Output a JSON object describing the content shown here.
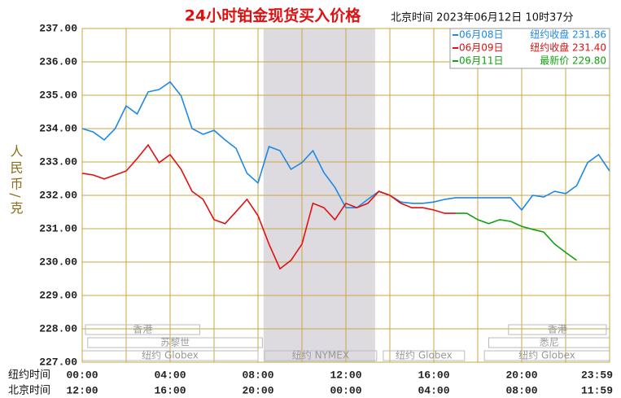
{
  "chart_data": {
    "type": "line",
    "title": "24小时铂金现货买入价格",
    "subtitle": "北京时间 2023年06月12日 10时37分",
    "ylabel": "人民币/克",
    "xlabel": "纽约时间",
    "x2label": "北京时间",
    "xlim": [
      0,
      24
    ],
    "ylim": [
      227,
      237
    ],
    "yticks": [
      {
        "value": 227,
        "label": "227.00"
      },
      {
        "value": 228,
        "label": "228.00"
      },
      {
        "value": 229,
        "label": "229.00"
      },
      {
        "value": 230,
        "label": "230.00"
      },
      {
        "value": 231,
        "label": "231.00"
      },
      {
        "value": 232,
        "label": "232.00"
      },
      {
        "value": 233,
        "label": "233.00"
      },
      {
        "value": 234,
        "label": "234.00"
      },
      {
        "value": 235,
        "label": "235.00"
      },
      {
        "value": 236,
        "label": "236.00"
      },
      {
        "value": 237,
        "label": "237.00"
      }
    ],
    "xticks": [
      {
        "value": 0,
        "label": "00:00"
      },
      {
        "value": 4,
        "label": "04:00"
      },
      {
        "value": 8,
        "label": "08:00"
      },
      {
        "value": 12,
        "label": "12:00"
      },
      {
        "value": 16,
        "label": "16:00"
      },
      {
        "value": 20,
        "label": "20:00"
      },
      {
        "value": 23.98,
        "label": "23:59"
      }
    ],
    "x2ticks": [
      {
        "value": 0,
        "label": "12:00"
      },
      {
        "value": 4,
        "label": "16:00"
      },
      {
        "value": 8,
        "label": "20:00"
      },
      {
        "value": 12,
        "label": "00:00"
      },
      {
        "value": 16,
        "label": "04:00"
      },
      {
        "value": 20,
        "label": "08:00"
      },
      {
        "value": 23.98,
        "label": "11:59"
      }
    ],
    "xgrid": [
      0,
      2,
      4,
      6,
      8,
      10,
      12,
      14,
      16,
      18,
      20,
      22,
      24
    ],
    "grid": true,
    "highlight_x": [
      8.25,
      13.33
    ],
    "sessions": [
      {
        "label": "香港",
        "start": 0.15,
        "end": 5.35
      },
      {
        "label": "苏黎世",
        "start": 0.25,
        "end": 8.2
      },
      {
        "label": "纽约 Globex",
        "start": 0,
        "end": 8
      },
      {
        "label": "纽约 NYMEX",
        "start": 8.3,
        "end": 13.4
      },
      {
        "label": "纽约 Globex",
        "start": 13.7,
        "end": 17.4
      },
      {
        "label": "香港",
        "start": 19.4,
        "end": 23.85
      },
      {
        "label": "悉尼",
        "start": 18.5,
        "end": 24
      },
      {
        "label": "纽约 Globex",
        "start": 18.3,
        "end": 24
      }
    ],
    "x": [
      0,
      0.5,
      1,
      1.5,
      2,
      2.5,
      3,
      3.5,
      4,
      4.5,
      5,
      5.5,
      6,
      6.5,
      7,
      7.5,
      8,
      8.5,
      9,
      9.5,
      10,
      10.5,
      11,
      11.5,
      12,
      12.5,
      13,
      13.5,
      14,
      14.5,
      15,
      15.5,
      16,
      16.5,
      17,
      17.5,
      18,
      18.5,
      19,
      19.5,
      20,
      20.5,
      21,
      21.5,
      22,
      22.5,
      23,
      23.5,
      24
    ],
    "series": [
      {
        "name": "06月08日",
        "legend_text": "纽约收盘 231.86",
        "color": "#1e88e5",
        "values": [
          234.0,
          233.9,
          233.66,
          234.0,
          234.68,
          234.44,
          235.1,
          235.17,
          235.4,
          234.98,
          234.0,
          233.83,
          233.95,
          233.66,
          233.41,
          232.66,
          232.37,
          233.46,
          233.34,
          232.78,
          232.98,
          233.34,
          232.68,
          232.24,
          231.63,
          231.63,
          231.88,
          232.12,
          232.0,
          231.8,
          231.76,
          231.76,
          231.8,
          231.88,
          231.93,
          231.93,
          231.93,
          231.93,
          231.93,
          231.93,
          231.56,
          232.0,
          231.95,
          232.12,
          232.05,
          232.29,
          232.98,
          233.22,
          232.73
        ]
      },
      {
        "name": "06月09日",
        "legend_text": "纽约收盘 231.40",
        "color": "#e01010",
        "values": [
          232.66,
          232.61,
          232.49,
          232.61,
          232.73,
          233.1,
          233.51,
          232.98,
          233.22,
          232.78,
          232.12,
          231.88,
          231.27,
          231.15,
          231.51,
          231.88,
          231.39,
          230.54,
          229.8,
          230.05,
          230.54,
          231.76,
          231.63,
          231.27,
          231.76,
          231.63,
          231.76,
          232.12,
          232.0,
          231.76,
          231.63,
          231.63,
          231.56,
          231.46,
          231.46,
          null,
          null,
          null,
          null,
          null,
          null,
          null,
          null,
          null,
          null,
          null,
          null,
          null,
          null
        ]
      },
      {
        "name": "06月11日",
        "legend_text": "最新价 229.80",
        "color": "#10a010",
        "values": [
          null,
          null,
          null,
          null,
          null,
          null,
          null,
          null,
          null,
          null,
          null,
          null,
          null,
          null,
          null,
          null,
          null,
          null,
          null,
          null,
          null,
          null,
          null,
          null,
          null,
          null,
          null,
          null,
          null,
          null,
          null,
          null,
          null,
          null,
          231.46,
          231.46,
          231.27,
          231.15,
          231.27,
          231.22,
          231.07,
          230.98,
          230.9,
          230.54,
          230.29,
          230.05,
          null,
          null,
          null
        ]
      }
    ]
  }
}
